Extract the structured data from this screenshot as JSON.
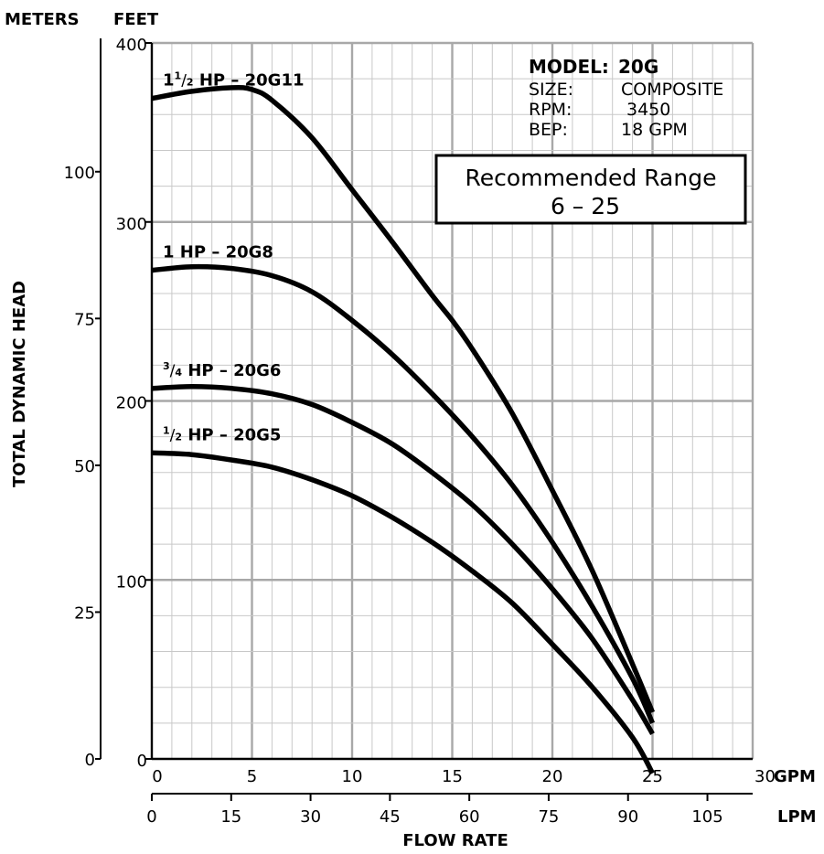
{
  "chart_data": {
    "type": "line",
    "units": {
      "meters": "METERS",
      "feet": "FEET",
      "gpm": "GPM",
      "lpm": "LPM"
    },
    "ylabel": "TOTAL DYNAMIC HEAD",
    "xlabel": "FLOW RATE",
    "feet_ticks": [
      "0",
      "100",
      "200",
      "300",
      "400"
    ],
    "feet_range": [
      0,
      400
    ],
    "meter_ticks": [
      "0",
      "25",
      "50",
      "75",
      "100"
    ],
    "gpm_ticks": [
      "0",
      "5",
      "10",
      "15",
      "20",
      "25",
      "30"
    ],
    "gpm_range": [
      0,
      30
    ],
    "lpm_ticks": [
      "0",
      "15",
      "30",
      "45",
      "60",
      "75",
      "90",
      "105"
    ],
    "grid": true,
    "info": {
      "model_label": "MODEL:",
      "model_value": "20G",
      "size_label": "SIZE:",
      "size_value": "COMPOSITE",
      "rpm_label": "RPM:",
      "rpm_value": "3450",
      "bep_label": "BEP:",
      "bep_value": "18 GPM"
    },
    "range_box": {
      "line1": "Recommended Range",
      "line2": "6 – 25"
    },
    "series": [
      {
        "name": "1½ HP – 20G11",
        "name_whole": "1",
        "name_num": "1",
        "name_den": "2",
        "name_rest": "HP – 20G11",
        "x": [
          0,
          2,
          4,
          5,
          6,
          8,
          10,
          12,
          14,
          15,
          16,
          18,
          20,
          22,
          24,
          25
        ],
        "y": [
          369,
          373,
          375,
          374,
          368,
          347,
          318,
          289,
          259,
          245,
          229,
          193,
          150,
          105,
          53,
          26
        ]
      },
      {
        "name": "1 HP – 20G8",
        "name_whole": "1",
        "name_num": "",
        "name_den": "",
        "name_rest": "HP – 20G8",
        "x": [
          0,
          2,
          4,
          6,
          8,
          10,
          12,
          14,
          16,
          18,
          20,
          22,
          24,
          25
        ],
        "y": [
          273,
          275,
          274,
          270,
          261,
          245,
          226,
          204,
          180,
          153,
          121,
          85,
          45,
          20
        ]
      },
      {
        "name": "¾ HP – 20G6",
        "name_whole": "",
        "name_num": "3",
        "name_den": "4",
        "name_rest": "HP – 20G6",
        "x": [
          0,
          2,
          4,
          6,
          8,
          10,
          12,
          14,
          16,
          18,
          20,
          22,
          24,
          25
        ],
        "y": [
          207,
          208,
          207,
          204,
          198,
          188,
          176,
          160,
          142,
          120,
          95,
          67,
          33,
          14
        ]
      },
      {
        "name": "½ HP – 20G5",
        "name_whole": "",
        "name_num": "1",
        "name_den": "2",
        "name_rest": "HP – 20G5",
        "x": [
          0,
          2,
          4,
          6,
          8,
          10,
          12,
          14,
          16,
          18,
          20,
          22,
          24,
          25
        ],
        "y": [
          171,
          170,
          167,
          163,
          156,
          147,
          135,
          121,
          105,
          87,
          64,
          40,
          12,
          -8
        ]
      }
    ]
  }
}
